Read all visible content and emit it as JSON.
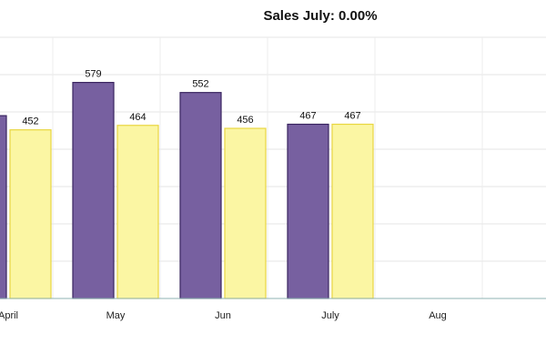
{
  "chart_data": {
    "type": "bar",
    "title": "Sales July: 0.00%",
    "categories": [
      "April",
      "May",
      "Jun",
      "July",
      "Aug"
    ],
    "series": [
      {
        "values": [
          490,
          579,
          552,
          467,
          null
        ],
        "color": "#7760a0",
        "stroke": "#3a2560"
      },
      {
        "values": [
          452,
          464,
          456,
          467,
          null
        ],
        "color": "#fbf6a3",
        "stroke": "#e8d640"
      }
    ],
    "ylim": [
      0,
      700
    ],
    "grid": true,
    "xlabel": "",
    "ylabel": ""
  }
}
